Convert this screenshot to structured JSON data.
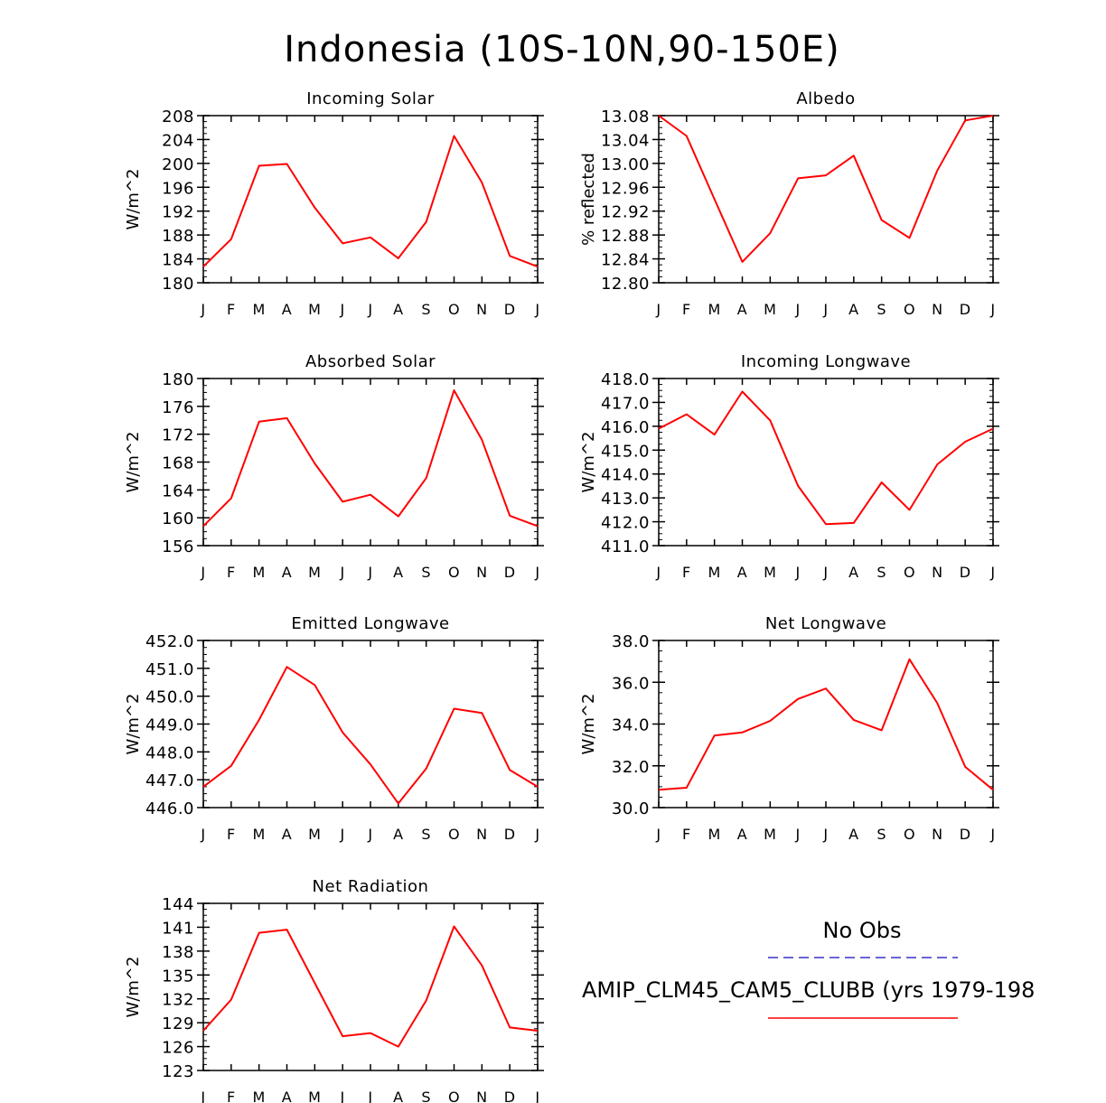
{
  "figure": {
    "title": "Indonesia (10S-10N,90-150E)"
  },
  "legend": {
    "obs_label": "No Obs",
    "obs_color": "#3333cc",
    "model_label": "AMIP_CLM45_CAM5_CLUBB (yrs 1979-198",
    "model_color": "#ff0000"
  },
  "chart_data": [
    {
      "type": "line",
      "title": "Incoming Solar",
      "ylabel": "W/m^2",
      "categories": [
        "J",
        "F",
        "M",
        "A",
        "M",
        "J",
        "J",
        "A",
        "S",
        "O",
        "N",
        "D",
        "J"
      ],
      "ylim": [
        180,
        208
      ],
      "yticks": [
        "180",
        "184",
        "188",
        "192",
        "196",
        "200",
        "204",
        "208"
      ],
      "values": [
        182.7,
        187.3,
        199.6,
        199.9,
        192.6,
        186.6,
        187.6,
        184.1,
        190.2,
        204.6,
        196.8,
        184.5,
        182.7
      ]
    },
    {
      "type": "line",
      "title": "Albedo",
      "ylabel": "% reflected",
      "categories": [
        "J",
        "F",
        "M",
        "A",
        "M",
        "J",
        "J",
        "A",
        "S",
        "O",
        "N",
        "D",
        "J"
      ],
      "ylim": [
        12.8,
        13.08
      ],
      "yticks": [
        "12.80",
        "12.84",
        "12.88",
        "12.92",
        "12.96",
        "13.00",
        "13.04",
        "13.08"
      ],
      "values": [
        13.08,
        13.046,
        12.94,
        12.835,
        12.883,
        12.975,
        12.98,
        13.013,
        12.905,
        12.875,
        12.988,
        13.072,
        13.08
      ]
    },
    {
      "type": "line",
      "title": "Absorbed Solar",
      "ylabel": "W/m^2",
      "categories": [
        "J",
        "F",
        "M",
        "A",
        "M",
        "J",
        "J",
        "A",
        "S",
        "O",
        "N",
        "D",
        "J"
      ],
      "ylim": [
        156,
        180
      ],
      "yticks": [
        "156",
        "160",
        "164",
        "168",
        "172",
        "176",
        "180"
      ],
      "values": [
        158.8,
        162.8,
        173.8,
        174.3,
        167.8,
        162.3,
        163.3,
        160.2,
        165.7,
        178.3,
        171.2,
        160.3,
        158.8
      ]
    },
    {
      "type": "line",
      "title": "Incoming Longwave",
      "ylabel": "W/m^2",
      "categories": [
        "J",
        "F",
        "M",
        "A",
        "M",
        "J",
        "J",
        "A",
        "S",
        "O",
        "N",
        "D",
        "J"
      ],
      "ylim": [
        411,
        418
      ],
      "yticks": [
        "411.0",
        "412.0",
        "413.0",
        "414.0",
        "415.0",
        "416.0",
        "417.0",
        "418.0"
      ],
      "values": [
        415.9,
        416.5,
        415.65,
        417.45,
        416.25,
        413.5,
        411.9,
        411.95,
        413.65,
        412.5,
        414.4,
        415.35,
        415.9
      ]
    },
    {
      "type": "line",
      "title": "Emitted Longwave",
      "ylabel": "W/m^2",
      "categories": [
        "J",
        "F",
        "M",
        "A",
        "M",
        "J",
        "J",
        "A",
        "S",
        "O",
        "N",
        "D",
        "J"
      ],
      "ylim": [
        446,
        452
      ],
      "yticks": [
        "446.0",
        "447.0",
        "448.0",
        "449.0",
        "450.0",
        "451.0",
        "452.0"
      ],
      "values": [
        446.75,
        447.5,
        449.15,
        451.05,
        450.4,
        448.7,
        447.55,
        446.15,
        447.4,
        449.55,
        449.4,
        447.35,
        446.75
      ]
    },
    {
      "type": "line",
      "title": "Net Longwave",
      "ylabel": "W/m^2",
      "categories": [
        "J",
        "F",
        "M",
        "A",
        "M",
        "J",
        "J",
        "A",
        "S",
        "O",
        "N",
        "D",
        "J"
      ],
      "ylim": [
        30,
        38
      ],
      "yticks": [
        "30.0",
        "32.0",
        "34.0",
        "36.0",
        "38.0"
      ],
      "values": [
        30.85,
        30.95,
        33.45,
        33.6,
        34.15,
        35.2,
        35.7,
        34.2,
        33.7,
        37.1,
        35.0,
        31.95,
        30.85
      ]
    },
    {
      "type": "line",
      "title": "Net Radiation",
      "ylabel": "W/m^2",
      "categories": [
        "J",
        "F",
        "M",
        "A",
        "M",
        "J",
        "J",
        "A",
        "S",
        "O",
        "N",
        "D",
        "J"
      ],
      "ylim": [
        123,
        144
      ],
      "yticks": [
        "123",
        "126",
        "129",
        "132",
        "135",
        "138",
        "141",
        "144"
      ],
      "values": [
        128.0,
        131.9,
        140.3,
        140.7,
        134.0,
        127.3,
        127.7,
        126.0,
        131.8,
        141.1,
        136.2,
        128.4,
        128.0
      ]
    }
  ]
}
